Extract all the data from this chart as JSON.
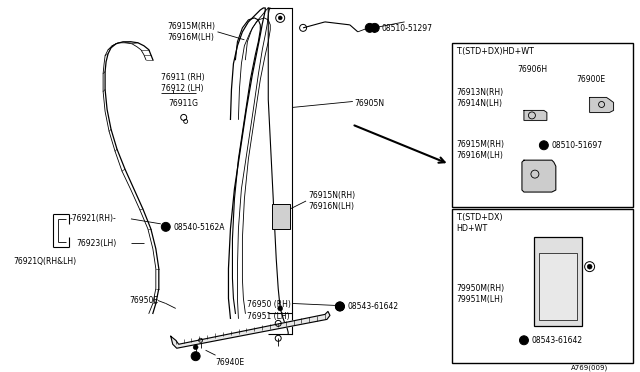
{
  "bg_color": "#ffffff",
  "line_color": "#000000",
  "fs": 5.5,
  "labels": {
    "76915M_top": "76915M(RH)\n76916M(LH)",
    "08510_51297": "S 08510-51297",
    "76911": "76911 (RH)\n76912 (LH)",
    "76911G": "76911G",
    "76905N": "76905N",
    "76915N": "76915N(RH)\n76916N(LH)",
    "76921": "-76921(RH)-",
    "08540_5162A": "S 08540-5162A",
    "76923": "76923(LH)",
    "76921Q": "76921Q(RH&LH)",
    "76950E": "76950E",
    "76950": "76950 (RH)\n76951 (LH)",
    "76940E": "76940E",
    "08543_61642": "S 08543-61642",
    "box1_title": "T.(STD+DX)HD+WT",
    "box1_76906H": "76906H",
    "box1_76900E": "76900E",
    "box1_76913N": "76913N(RH)\n76914N(LH)",
    "box1_76915M": "76915M(RH)\n76916M(LH)",
    "box1_08510_51697": "S 08510-51697",
    "box2_title": "T.(STD+DX)\nHD+WT",
    "box2_79950M": "79950M(RH)\n79951M(LH)",
    "box2_08543": "S 08543-61642",
    "fig_num": "A769(009)"
  }
}
